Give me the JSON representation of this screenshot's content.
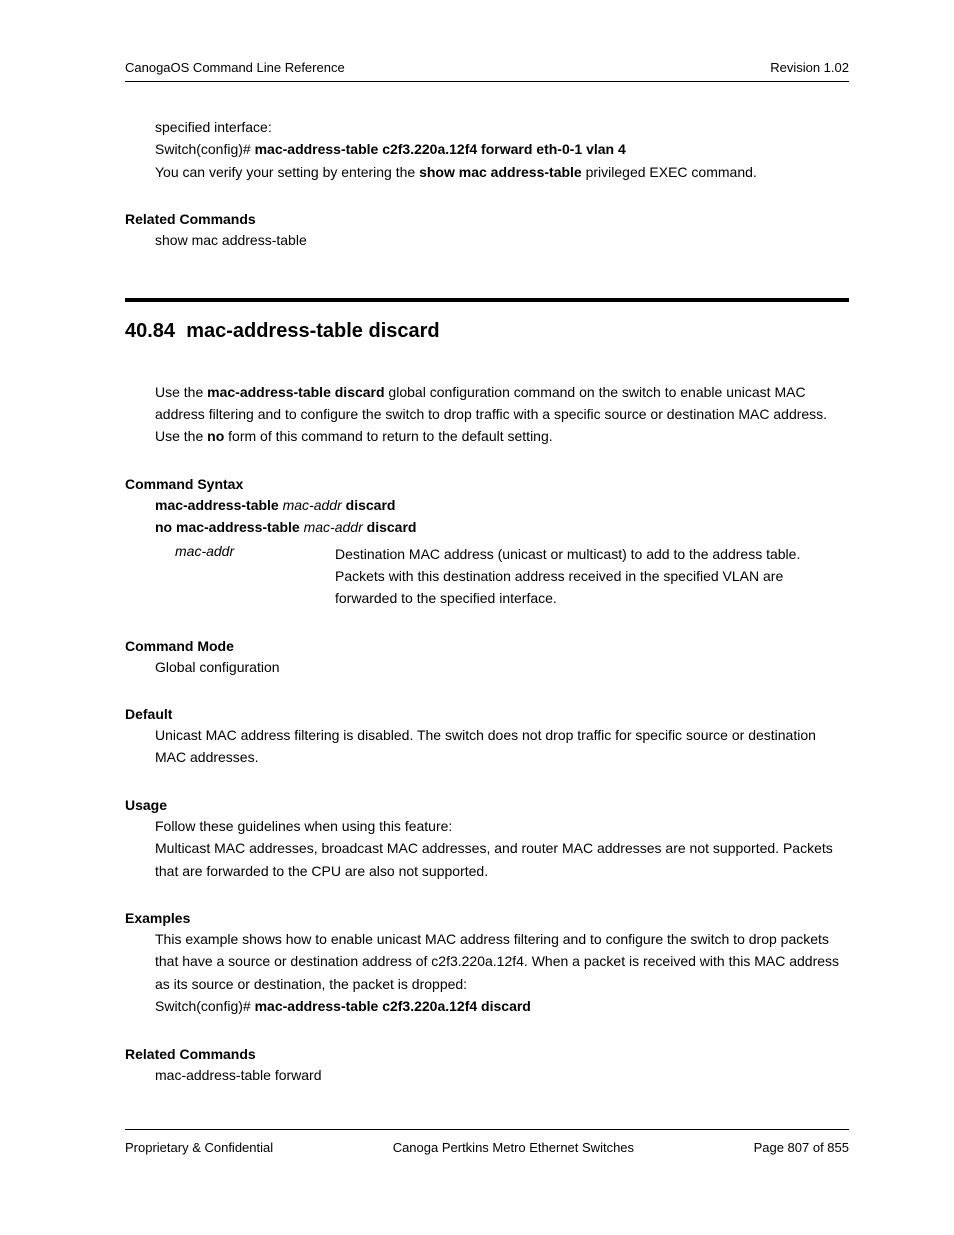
{
  "header": {
    "left": "CanogaOS Command Line Reference",
    "right": "Revision 1.02"
  },
  "footer": {
    "left": "Proprietary & Confidential",
    "center": "Canoga Pertkins Metro Ethernet Switches",
    "right": "Page 807 of 855"
  },
  "prev": {
    "line1": "specified interface:",
    "prompt": "Switch(config)# ",
    "cmd": "mac-address-table c2f3.220a.12f4 forward eth-0-1 vlan 4",
    "verify_pre": "You can verify your setting by entering the ",
    "verify_bold": "show mac address-table",
    "verify_post": " privileged EXEC command.",
    "related_heading": "Related Commands",
    "related_body": "show mac address-table"
  },
  "section": {
    "number": "40.84",
    "title": "mac-address-table discard",
    "intro_pre": "Use the ",
    "intro_bold1": "mac-address-table discard",
    "intro_mid": " global configuration command on the switch to enable unicast MAC address filtering and to configure the switch to drop traffic with a specific source or destination MAC address. Use the ",
    "intro_bold2": "no",
    "intro_post": " form of this command to return to the default setting.",
    "syntax_heading": "Command Syntax",
    "syntax_cmd1_b1": "mac-address-table",
    "syntax_cmd1_arg": "mac-addr",
    "syntax_cmd1_b2": "discard",
    "syntax_cmd2_b1": "no mac-address-table",
    "syntax_cmd2_arg": "mac-addr",
    "syntax_cmd2_b2": "discard",
    "param_name": "mac-addr",
    "param_desc": "Destination MAC address (unicast or multicast) to add to the address table. Packets with this destination address received in the specified VLAN are forwarded to the specified interface.",
    "mode_heading": "Command Mode",
    "mode_body": "Global configuration",
    "default_heading": "Default",
    "default_body": "Unicast MAC address filtering is disabled. The switch does not drop traffic for specific source or destination MAC addresses.",
    "usage_heading": "Usage",
    "usage_body": "Follow these guidelines when using this feature:\nMulticast MAC addresses, broadcast MAC addresses, and router MAC addresses are not supported. Packets that are forwarded to the CPU are also not supported.",
    "examples_heading": "Examples",
    "examples_body": "This example shows how to enable unicast MAC address filtering and to configure the switch to drop packets that have a source or destination address of c2f3.220a.12f4. When a packet is received with this MAC address as its source or destination, the packet is dropped:",
    "examples_prompt": "Switch(config)# ",
    "examples_cmd": "mac-address-table c2f3.220a.12f4 discard",
    "related_heading": "Related Commands",
    "related_body": "mac-address-table forward"
  }
}
